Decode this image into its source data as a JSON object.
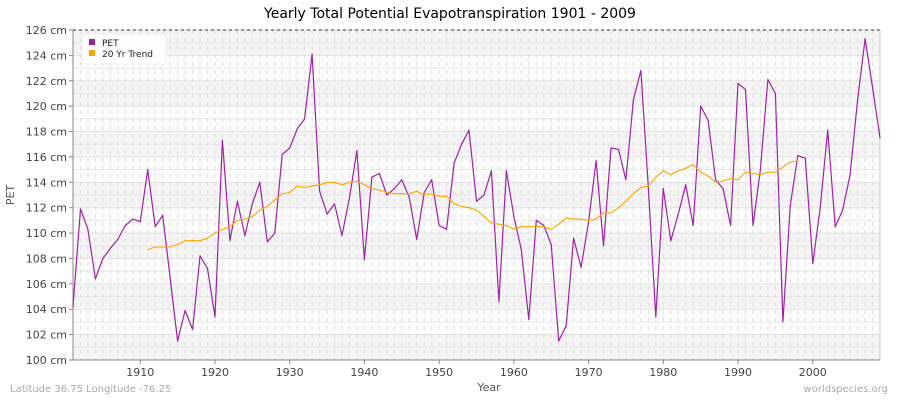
{
  "chart_data": {
    "type": "line",
    "title": "Yearly Total Potential Evapotranspiration 1901 - 2009",
    "xlabel": "Year",
    "ylabel": "PET",
    "xlim": [
      1901,
      2009
    ],
    "ylim": [
      100,
      126
    ],
    "y_unit": "cm",
    "grid": true,
    "legend_placement": "top-left",
    "x_ticks": [
      1910,
      1920,
      1930,
      1940,
      1950,
      1960,
      1970,
      1980,
      1990,
      2000
    ],
    "y_ticks": [
      "100 cm",
      "102 cm",
      "104 cm",
      "106 cm",
      "108 cm",
      "110 cm",
      "112 cm",
      "114 cm",
      "116 cm",
      "118 cm",
      "120 cm",
      "122 cm",
      "124 cm",
      "126 cm"
    ],
    "series": [
      {
        "name": "PET",
        "color": "#a020a8",
        "x_start": 1901,
        "values": [
          104.2,
          111.9,
          110.3,
          106.4,
          108.0,
          108.8,
          109.5,
          110.6,
          111.1,
          110.9,
          115.0,
          110.5,
          111.4,
          106.5,
          101.5,
          103.9,
          102.4,
          108.2,
          107.2,
          103.4,
          117.3,
          109.4,
          112.5,
          109.8,
          112.3,
          114.0,
          109.3,
          110.0,
          116.2,
          116.7,
          118.2,
          119.0,
          124.1,
          113.3,
          111.5,
          112.3,
          109.8,
          112.8,
          116.5,
          107.9,
          114.4,
          114.7,
          113.0,
          113.5,
          114.2,
          112.8,
          109.5,
          113.2,
          114.2,
          110.6,
          110.3,
          115.5,
          117.0,
          118.1,
          112.5,
          113.0,
          114.9,
          104.6,
          114.9,
          111.3,
          108.7,
          103.2,
          111.0,
          110.6,
          109.1,
          101.5,
          102.7,
          109.6,
          107.3,
          110.9,
          115.7,
          109.0,
          116.7,
          116.6,
          114.2,
          120.5,
          122.8,
          113.5,
          103.4,
          113.5,
          109.4,
          111.5,
          113.8,
          110.6,
          120.0,
          118.9,
          114.2,
          113.5,
          110.6,
          121.8,
          121.3,
          110.6,
          115.0,
          122.1,
          121.0,
          103.0,
          112.2,
          116.1,
          115.9,
          107.6,
          112.0,
          118.1,
          110.5,
          111.8,
          114.6,
          120.5,
          125.3,
          121.5,
          117.5
        ]
      },
      {
        "name": "20 Yr Trend",
        "color": "#ffa500",
        "x_start": 1911,
        "values": [
          108.7,
          108.9,
          108.9,
          108.9,
          109.1,
          109.4,
          109.4,
          109.4,
          109.6,
          110.0,
          110.3,
          110.5,
          111.0,
          111.1,
          111.3,
          111.8,
          112.1,
          112.6,
          113.1,
          113.2,
          113.7,
          113.6,
          113.7,
          113.8,
          114.0,
          114.0,
          113.8,
          114.0,
          114.1,
          113.8,
          113.5,
          113.4,
          113.2,
          113.1,
          113.1,
          113.1,
          113.3,
          113.0,
          113.1,
          112.9,
          112.9,
          112.3,
          112.1,
          112.0,
          111.8,
          111.3,
          110.8,
          110.7,
          110.6,
          110.3,
          110.5,
          110.5,
          110.5,
          110.5,
          110.3,
          110.7,
          111.2,
          111.1,
          111.1,
          111.0,
          111.1,
          111.6,
          111.6,
          112.0,
          112.5,
          113.1,
          113.6,
          113.7,
          114.4,
          114.9,
          114.6,
          114.9,
          115.1,
          115.4,
          114.8,
          114.5,
          114.0,
          114.1,
          114.3,
          114.2,
          114.8,
          114.7,
          114.6,
          114.8,
          114.8,
          115.2,
          115.6,
          115.7
        ]
      }
    ]
  },
  "footer": {
    "location": "Latitude 36.75 Longitude -76.25",
    "source": "worldspecies.org"
  }
}
